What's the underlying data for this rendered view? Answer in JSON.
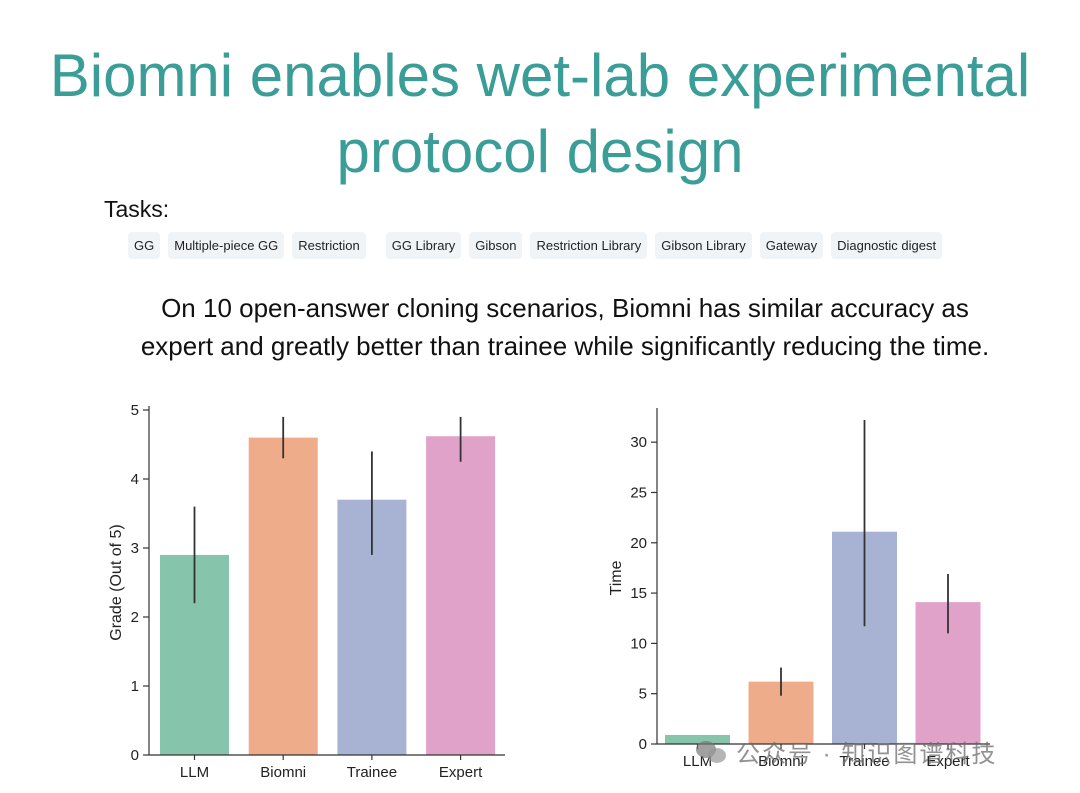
{
  "slide": {
    "title_line1": "Biomni enables wet-lab experimental",
    "title_line2": "protocol design",
    "tasks_label": "Tasks:",
    "tasks": [
      "GG",
      "Multiple-piece GG",
      "Restriction",
      "GG Library",
      "Gibson",
      "Restriction Library",
      "Gibson Library",
      "Gateway",
      "Diagnostic digest"
    ],
    "summary_line1": "On 10 open-answer cloning scenarios, Biomni has similar accuracy as",
    "summary_line2": "expert and greatly better than trainee while significantly reducing the time."
  },
  "watermark": {
    "text": "公众号 · 知识图谱科技"
  },
  "chart_data": [
    {
      "type": "bar",
      "categories": [
        "LLM",
        "Biomni",
        "Trainee",
        "Expert"
      ],
      "values": [
        2.9,
        4.6,
        3.7,
        4.62
      ],
      "error_low": [
        2.2,
        4.3,
        2.9,
        4.25
      ],
      "error_high": [
        3.6,
        4.9,
        4.4,
        4.9
      ],
      "colors": [
        "#86c5ab",
        "#efac8a",
        "#a8b3d4",
        "#e0a2c8"
      ],
      "xlabel": "",
      "ylabel": "Grade (Out of 5)",
      "ylim": [
        0,
        5
      ],
      "yticks": [
        0,
        1,
        2,
        3,
        4,
        5
      ],
      "grid": false
    },
    {
      "type": "bar",
      "categories": [
        "LLM",
        "Biomni",
        "Trainee",
        "Expert"
      ],
      "values": [
        0.9,
        6.2,
        21.1,
        14.1
      ],
      "error_low": [
        null,
        4.8,
        11.7,
        11.0
      ],
      "error_high": [
        null,
        7.6,
        32.2,
        16.9
      ],
      "colors": [
        "#86c5ab",
        "#efac8a",
        "#a8b3d4",
        "#e0a2c8"
      ],
      "xlabel": "",
      "ylabel": "Time",
      "ylim": [
        0,
        33
      ],
      "yticks": [
        0,
        5,
        10,
        15,
        20,
        25,
        30
      ],
      "grid": false
    }
  ]
}
